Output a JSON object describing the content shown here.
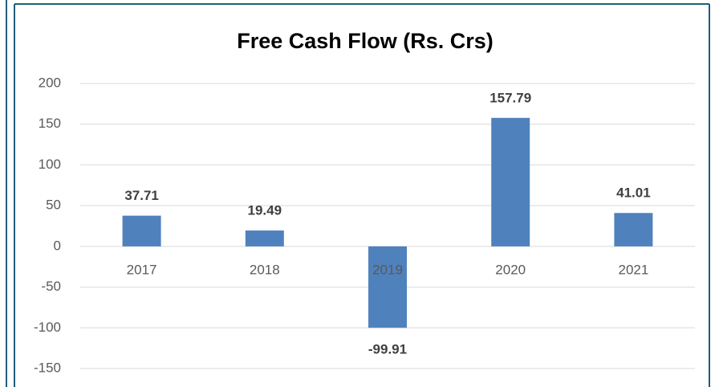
{
  "chart_data": {
    "type": "bar",
    "title": "Free Cash Flow (Rs. Crs)",
    "categories": [
      "2017",
      "2018",
      "2019",
      "2020",
      "2021"
    ],
    "values": [
      37.71,
      19.49,
      -99.91,
      157.79,
      41.01
    ],
    "color": "#4f81bd",
    "ylim": [
      -150,
      200
    ],
    "yticks": [
      -150,
      -100,
      -50,
      0,
      50,
      100,
      150,
      200
    ],
    "grid": true
  }
}
